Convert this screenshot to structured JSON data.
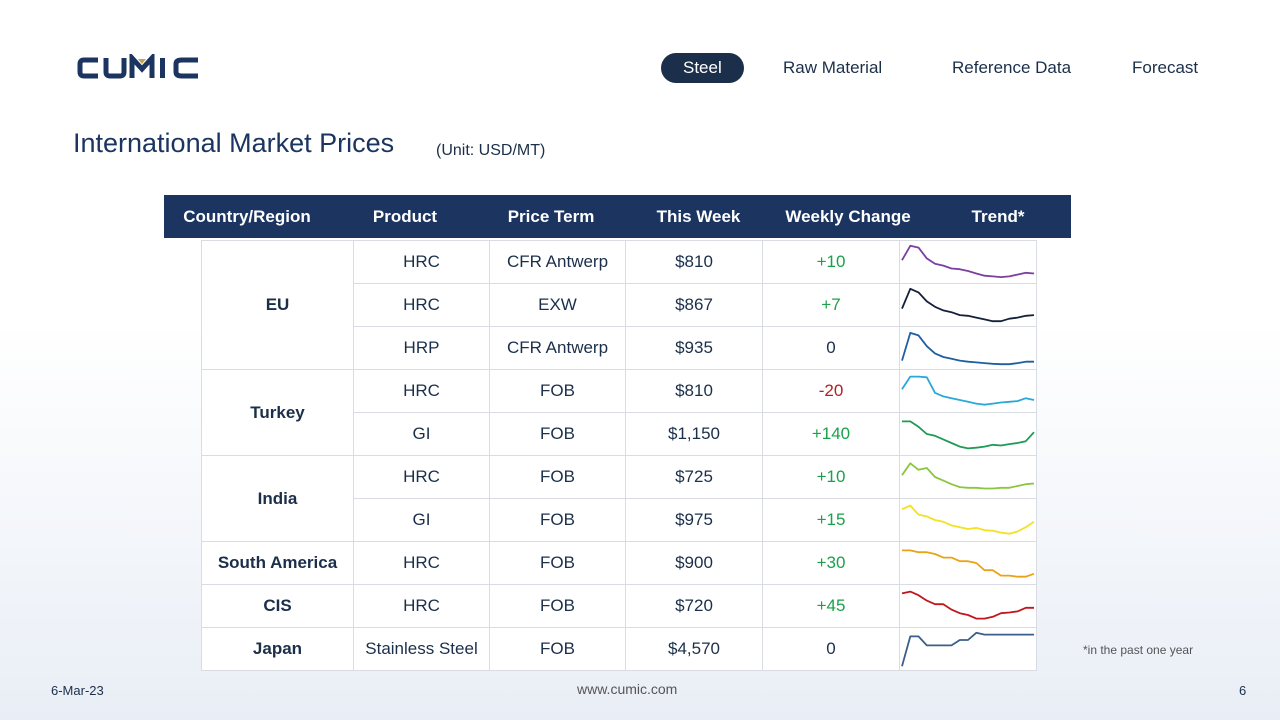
{
  "brand": {
    "logo_text": "CUMIC",
    "colors": {
      "navy": "#1b3560",
      "gold": "#c8a24a"
    }
  },
  "nav": {
    "items": [
      {
        "label": "Steel",
        "active": true
      },
      {
        "label": "Raw Material",
        "active": false
      },
      {
        "label": "Reference Data",
        "active": false
      },
      {
        "label": "Forecast",
        "active": false
      }
    ]
  },
  "page": {
    "title": "International Market Prices",
    "unit": "(Unit: USD/MT)"
  },
  "table": {
    "headers": [
      "Country/Region",
      "Product",
      "Price Term",
      "This Week",
      "Weekly Change",
      "Trend*"
    ],
    "groups": [
      {
        "region": "EU",
        "rows": [
          {
            "product": "HRC",
            "term": "CFR Antwerp",
            "week": "$810",
            "change": "+10",
            "trend_color": "#7b3fa0",
            "trend": [
              0.55,
              0.95,
              0.9,
              0.6,
              0.45,
              0.4,
              0.32,
              0.3,
              0.25,
              0.18,
              0.12,
              0.1,
              0.08,
              0.1,
              0.15,
              0.2,
              0.18
            ]
          },
          {
            "product": "HRC",
            "term": "EXW",
            "week": "$867",
            "change": "+7",
            "trend_color": "#14203a",
            "trend": [
              0.4,
              0.95,
              0.85,
              0.6,
              0.45,
              0.35,
              0.3,
              0.22,
              0.2,
              0.15,
              0.1,
              0.05,
              0.05,
              0.12,
              0.15,
              0.2,
              0.22
            ]
          },
          {
            "product": "HRP",
            "term": "CFR Antwerp",
            "week": "$935",
            "change": "0",
            "trend_color": "#1f5fa0",
            "trend": [
              0.15,
              0.92,
              0.85,
              0.55,
              0.35,
              0.25,
              0.2,
              0.15,
              0.12,
              0.1,
              0.08,
              0.06,
              0.05,
              0.05,
              0.08,
              0.12,
              0.12
            ]
          }
        ]
      },
      {
        "region": "Turkey",
        "rows": [
          {
            "product": "HRC",
            "term": "FOB",
            "week": "$810",
            "change": "-20",
            "trend_color": "#2aa8d8",
            "trend": [
              0.55,
              0.9,
              0.9,
              0.88,
              0.45,
              0.35,
              0.3,
              0.25,
              0.2,
              0.15,
              0.12,
              0.15,
              0.18,
              0.2,
              0.22,
              0.3,
              0.25
            ]
          },
          {
            "product": "GI",
            "term": "FOB",
            "week": "$1,150",
            "change": "+140",
            "trend_color": "#1f9a57",
            "trend": [
              0.85,
              0.85,
              0.7,
              0.5,
              0.45,
              0.35,
              0.25,
              0.15,
              0.1,
              0.12,
              0.15,
              0.2,
              0.18,
              0.22,
              0.25,
              0.3,
              0.55
            ]
          }
        ]
      },
      {
        "region": "India",
        "rows": [
          {
            "product": "HRC",
            "term": "FOB",
            "week": "$725",
            "change": "+10",
            "trend_color": "#8cc63f",
            "trend": [
              0.55,
              0.88,
              0.7,
              0.75,
              0.5,
              0.4,
              0.3,
              0.22,
              0.2,
              0.2,
              0.18,
              0.18,
              0.2,
              0.2,
              0.25,
              0.3,
              0.32
            ]
          },
          {
            "product": "GI",
            "term": "FOB",
            "week": "$975",
            "change": "+15",
            "trend_color": "#f2e222",
            "trend": [
              0.8,
              0.9,
              0.65,
              0.6,
              0.5,
              0.45,
              0.35,
              0.3,
              0.25,
              0.28,
              0.22,
              0.2,
              0.15,
              0.12,
              0.18,
              0.3,
              0.45
            ]
          }
        ]
      },
      {
        "region": "South America",
        "rows": [
          {
            "product": "HRC",
            "term": "FOB",
            "week": "$900",
            "change": "+30",
            "trend_color": "#e8a319",
            "trend": [
              0.85,
              0.85,
              0.8,
              0.8,
              0.75,
              0.65,
              0.65,
              0.55,
              0.55,
              0.5,
              0.3,
              0.3,
              0.15,
              0.15,
              0.12,
              0.12,
              0.2
            ]
          }
        ]
      },
      {
        "region": "CIS",
        "rows": [
          {
            "product": "HRC",
            "term": "FOB",
            "week": "$720",
            "change": "+45",
            "trend_color": "#c0161d",
            "trend": [
              0.85,
              0.9,
              0.8,
              0.65,
              0.55,
              0.55,
              0.4,
              0.3,
              0.25,
              0.15,
              0.15,
              0.2,
              0.3,
              0.32,
              0.35,
              0.45,
              0.45
            ]
          }
        ]
      },
      {
        "region": "Japan",
        "rows": [
          {
            "product": "Stainless Steel",
            "term": "FOB",
            "week": "$4,570",
            "change": "0",
            "trend_color": "#3a5f8a",
            "trend": [
              0.02,
              0.85,
              0.85,
              0.6,
              0.6,
              0.6,
              0.6,
              0.75,
              0.75,
              0.95,
              0.9,
              0.9,
              0.9,
              0.9,
              0.9,
              0.9,
              0.9
            ]
          }
        ]
      }
    ]
  },
  "footnote": "*in the past one year",
  "footer": {
    "date": "6-Mar-23",
    "url": "www.cumic.com",
    "page": "6"
  }
}
